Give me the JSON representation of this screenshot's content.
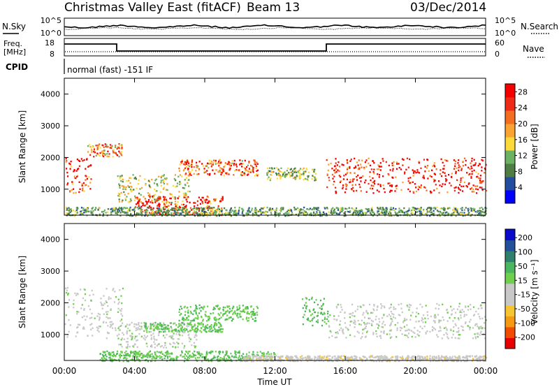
{
  "header": {
    "title": "Christmas Valley East (fitACF)",
    "beam": "Beam 13",
    "date": "03/Dec/2014"
  },
  "colors": {
    "axis": "#000000",
    "power_scale": [
      "#0000ff",
      "#234ea0",
      "#4f7d44",
      "#6bb262",
      "#fcda3b",
      "#f9a332",
      "#f56d20",
      "#ee2b16",
      "#f50000"
    ],
    "velocity_scale": [
      "#e70000",
      "#f24c00",
      "#f69a12",
      "#f7c532",
      "#c8c8c8",
      "#c8c8c8",
      "#6fd04e",
      "#4cb55f",
      "#2e7f6b",
      "#23509b",
      "#0a0acd"
    ]
  },
  "status_panels": {
    "noise": {
      "left_label": "N.Sky",
      "right_label": "N.Search",
      "left_ticks": [
        "10^5",
        "10^0"
      ],
      "right_ticks": [
        "10^5",
        "10^0"
      ]
    },
    "freq": {
      "left_label_line1": "Freq.",
      "left_label_line2": "[MHz]",
      "right_label": "Nave",
      "left_ticks": [
        "18",
        "8"
      ],
      "right_ticks": [
        "60",
        "0"
      ]
    },
    "cpid": {
      "label": "CPID",
      "text": "normal (fast) -151 IF"
    }
  },
  "chart_data": [
    {
      "type": "heatmap",
      "panel": "power",
      "ylabel": "Slant Range [km]",
      "y_ticks": [
        "1000",
        "2000",
        "3000",
        "4000"
      ],
      "ylim": [
        180,
        4500
      ],
      "colorbar": {
        "label": "Power [dB]",
        "ticks": [
          "4",
          "8",
          "12",
          "16",
          "20",
          "24",
          "28"
        ],
        "range": [
          0,
          30
        ]
      },
      "echo_regions": [
        {
          "t_hour": [
            0.0,
            1.5
          ],
          "range_km": [
            900,
            2000
          ],
          "peak_db": 28
        },
        {
          "t_hour": [
            1.3,
            3.3
          ],
          "range_km": [
            2050,
            2450
          ],
          "peak_db": 20
        },
        {
          "t_hour": [
            3.0,
            7.2
          ],
          "range_km": [
            600,
            1500
          ],
          "peak_db": 14
        },
        {
          "t_hour": [
            4.0,
            9.0
          ],
          "range_km": [
            200,
            800
          ],
          "peak_db": 28
        },
        {
          "t_hour": [
            6.5,
            11.0
          ],
          "range_km": [
            1450,
            1950
          ],
          "peak_db": 22
        },
        {
          "t_hour": [
            11.5,
            14.3
          ],
          "range_km": [
            1300,
            1700
          ],
          "peak_db": 12
        },
        {
          "t_hour": [
            14.9,
            24.0
          ],
          "range_km": [
            900,
            2000
          ],
          "peak_db": 30
        },
        {
          "t_hour": [
            0.0,
            24.0
          ],
          "range_km": [
            180,
            450
          ],
          "peak_db": 10
        }
      ]
    },
    {
      "type": "heatmap",
      "panel": "velocity",
      "ylabel": "Slant Range [km]",
      "xlabel": "Time UT",
      "y_ticks": [
        "1000",
        "2000",
        "3000",
        "4000"
      ],
      "x_ticks": [
        "00:00",
        "04:00",
        "08:00",
        "12:00",
        "16:00",
        "20:00",
        "00:00"
      ],
      "xlim_hours": [
        0,
        24
      ],
      "ylim": [
        180,
        4500
      ],
      "colorbar": {
        "label": "Velocity [m s⁻¹]",
        "ticks": [
          "200",
          "100",
          "50",
          "15",
          "-15",
          "-50",
          "-100",
          "-200"
        ],
        "range": [
          -250,
          250
        ]
      },
      "echo_regions": [
        {
          "t_hour": [
            0.0,
            3.3
          ],
          "range_km": [
            900,
            2500
          ],
          "velocity": 0
        },
        {
          "t_hour": [
            3.0,
            7.5
          ],
          "range_km": [
            600,
            1400
          ],
          "velocity": 0
        },
        {
          "t_hour": [
            4.5,
            9.0
          ],
          "range_km": [
            1100,
            1400
          ],
          "velocity": 60
        },
        {
          "t_hour": [
            6.5,
            11.0
          ],
          "range_km": [
            1450,
            1950
          ],
          "velocity": 60
        },
        {
          "t_hour": [
            13.5,
            15.0
          ],
          "range_km": [
            1300,
            2200
          ],
          "velocity": 70
        },
        {
          "t_hour": [
            15.0,
            24.0
          ],
          "range_km": [
            900,
            2000
          ],
          "velocity": 0
        },
        {
          "t_hour": [
            2.0,
            12.0
          ],
          "range_km": [
            180,
            500
          ],
          "velocity": 60
        },
        {
          "t_hour": [
            10.0,
            24.0
          ],
          "range_km": [
            180,
            350
          ],
          "velocity": -40
        }
      ]
    }
  ]
}
